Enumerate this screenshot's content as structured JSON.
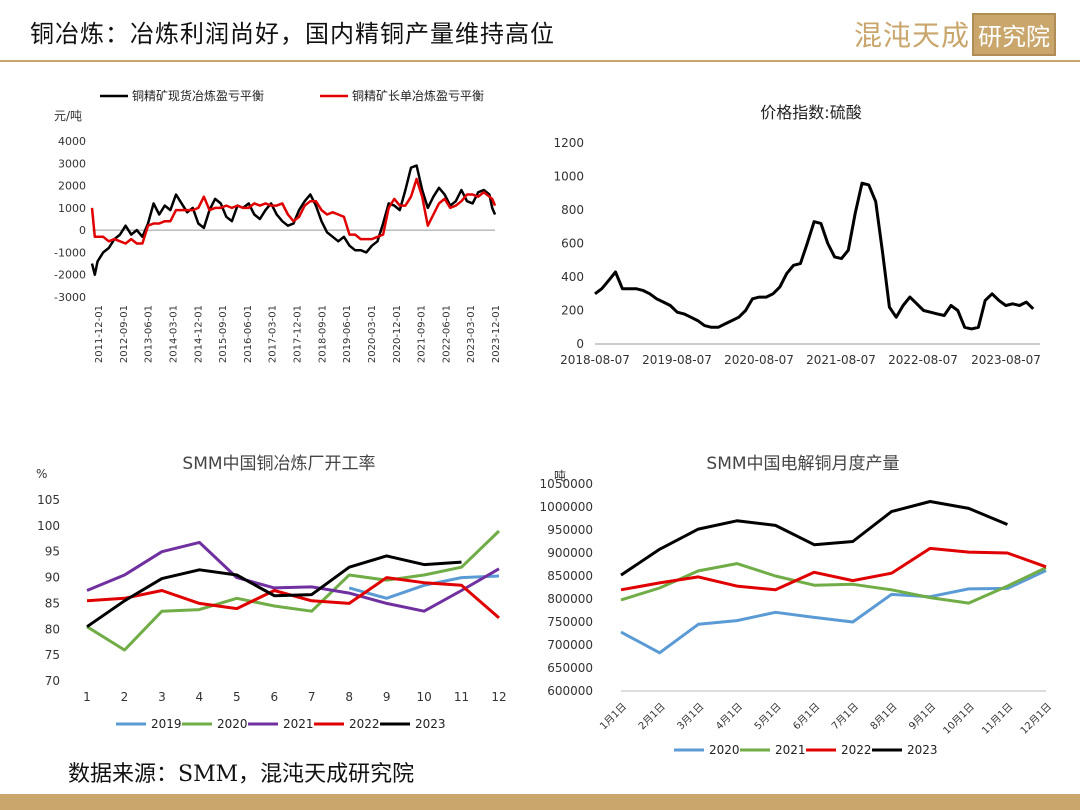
{
  "header": {
    "title": "铜冶炼：冶炼利润尚好，国内精铜产量维持高位",
    "brand_text": "混沌天成",
    "brand_box_text": "研究院",
    "accent_color": "#c9a66b"
  },
  "footer": {
    "source": "数据来源：SMM，混沌天成研究院"
  },
  "chart_data": [
    {
      "type": "line",
      "title": "",
      "ylabel": "元/吨",
      "ylim": [
        -3000,
        4000
      ],
      "yticks": [
        -3000,
        -2000,
        -1000,
        0,
        1000,
        2000,
        3000,
        4000
      ],
      "x_ticks": [
        "2011-12-01",
        "2012-09-01",
        "2013-06-01",
        "2014-03-01",
        "2014-12-01",
        "2015-09-01",
        "2016-06-01",
        "2017-03-01",
        "2017-12-01",
        "2018-09-01",
        "2019-06-01",
        "2020-03-01",
        "2020-12-01",
        "2021-09-01",
        "2022-06-01",
        "2023-03-01",
        "2023-12-01"
      ],
      "x_range": [
        0,
        144
      ],
      "legend_position": "top",
      "series": [
        {
          "name": "铜精矿现货冶炼盈亏平衡",
          "color": "#000000",
          "x": [
            0,
            1,
            2,
            4,
            6,
            8,
            10,
            12,
            14,
            16,
            18,
            20,
            22,
            24,
            26,
            28,
            30,
            32,
            34,
            36,
            38,
            40,
            42,
            44,
            46,
            48,
            50,
            52,
            54,
            56,
            58,
            60,
            62,
            64,
            66,
            68,
            70,
            72,
            74,
            76,
            78,
            80,
            82,
            84,
            86,
            88,
            90,
            92,
            94,
            96,
            98,
            100,
            102,
            104,
            106,
            108,
            110,
            112,
            114,
            116,
            118,
            120,
            122,
            124,
            126,
            128,
            130,
            132,
            134,
            136,
            138,
            140,
            142,
            143,
            144
          ],
          "values": [
            -1500,
            -2000,
            -1400,
            -1000,
            -800,
            -400,
            -200,
            200,
            -200,
            0,
            -300,
            300,
            1200,
            700,
            1100,
            900,
            1600,
            1200,
            800,
            1000,
            300,
            100,
            900,
            1400,
            1200,
            600,
            400,
            1100,
            1000,
            1200,
            700,
            500,
            900,
            1200,
            700,
            400,
            200,
            300,
            900,
            1300,
            1600,
            1100,
            400,
            -100,
            -300,
            -500,
            -300,
            -700,
            -900,
            -900,
            -1000,
            -700,
            -500,
            300,
            1200,
            1100,
            900,
            1800,
            2800,
            2900,
            1800,
            1000,
            1500,
            1900,
            1600,
            1100,
            1300,
            1800,
            1300,
            1200,
            1700,
            1800,
            1600,
            1000,
            700
          ]
        },
        {
          "name": "铜精矿长单冶炼盈亏平衡",
          "color": "#e00000",
          "x": [
            0,
            1,
            2,
            4,
            6,
            8,
            10,
            12,
            14,
            16,
            18,
            20,
            22,
            24,
            26,
            28,
            30,
            32,
            34,
            36,
            38,
            40,
            42,
            44,
            46,
            48,
            50,
            52,
            54,
            56,
            58,
            60,
            62,
            64,
            66,
            68,
            70,
            72,
            74,
            76,
            78,
            80,
            82,
            84,
            86,
            88,
            90,
            92,
            94,
            96,
            98,
            100,
            102,
            104,
            106,
            108,
            110,
            112,
            114,
            116,
            118,
            120,
            122,
            124,
            126,
            128,
            130,
            132,
            134,
            136,
            138,
            140,
            142,
            143,
            144
          ],
          "values": [
            1000,
            -300,
            -300,
            -300,
            -500,
            -400,
            -500,
            -600,
            -400,
            -600,
            -600,
            200,
            300,
            300,
            400,
            400,
            900,
            900,
            900,
            900,
            1000,
            1500,
            900,
            1000,
            1000,
            1100,
            1000,
            1100,
            1000,
            1000,
            1200,
            1100,
            1200,
            1100,
            1100,
            1200,
            700,
            400,
            600,
            1100,
            1300,
            1300,
            900,
            700,
            800,
            700,
            600,
            -200,
            -200,
            -400,
            -400,
            -400,
            -300,
            -200,
            1000,
            1400,
            1100,
            1100,
            1500,
            2300,
            1500,
            200,
            700,
            1200,
            1400,
            1000,
            1100,
            1300,
            1600,
            1600,
            1500,
            1700,
            1500,
            1400,
            1100
          ]
        }
      ]
    },
    {
      "type": "line",
      "title": "价格指数:硫酸",
      "ylim": [
        0,
        1200
      ],
      "yticks": [
        0,
        200,
        400,
        600,
        800,
        1000,
        1200
      ],
      "x_ticks": [
        "2018-08-07",
        "2019-08-07",
        "2020-08-07",
        "2021-08-07",
        "2022-08-07",
        "2023-08-07"
      ],
      "x_range": [
        0,
        65
      ],
      "series": [
        {
          "name": "",
          "color": "#000000",
          "x": [
            0,
            1,
            2,
            3,
            4,
            5,
            6,
            7,
            8,
            9,
            10,
            11,
            12,
            13,
            14,
            15,
            16,
            17,
            18,
            19,
            20,
            21,
            22,
            23,
            24,
            25,
            26,
            27,
            28,
            29,
            30,
            31,
            32,
            33,
            34,
            35,
            36,
            37,
            38,
            39,
            40,
            41,
            42,
            43,
            44,
            45,
            46,
            47,
            48,
            49,
            50,
            51,
            52,
            53,
            54,
            55,
            56,
            57,
            58,
            59,
            60,
            61,
            62,
            63,
            64
          ],
          "values": [
            300,
            330,
            380,
            430,
            330,
            330,
            330,
            320,
            300,
            270,
            250,
            230,
            190,
            180,
            160,
            140,
            110,
            100,
            100,
            120,
            140,
            160,
            200,
            270,
            280,
            280,
            300,
            340,
            420,
            470,
            480,
            600,
            730,
            720,
            600,
            520,
            510,
            560,
            780,
            960,
            950,
            850,
            550,
            220,
            160,
            230,
            280,
            240,
            200,
            190,
            180,
            170,
            230,
            200,
            100,
            90,
            100,
            260,
            300,
            260,
            230,
            240,
            230,
            250,
            210
          ]
        }
      ]
    },
    {
      "type": "line",
      "title": "SMM中国铜冶炼厂开工率",
      "ylabel": "%",
      "ylim": [
        70,
        105
      ],
      "yticks": [
        70,
        75,
        80,
        85,
        90,
        95,
        100,
        105
      ],
      "categories": [
        "1",
        "2",
        "3",
        "4",
        "5",
        "6",
        "7",
        "8",
        "9",
        "10",
        "11",
        "12"
      ],
      "legend_position": "bottom",
      "series": [
        {
          "name": "2019",
          "color": "#5b9bd5",
          "values": [
            null,
            null,
            null,
            null,
            null,
            null,
            null,
            88,
            86,
            88.5,
            90,
            90.3
          ]
        },
        {
          "name": "2020",
          "color": "#70ad47",
          "values": [
            80.5,
            76,
            83.5,
            83.8,
            86,
            84.5,
            83.5,
            90.5,
            89.5,
            90.5,
            92,
            99
          ]
        },
        {
          "name": "2021",
          "color": "#7030a0",
          "values": [
            87.5,
            90.5,
            95,
            96.8,
            90,
            88,
            88.2,
            87,
            85,
            83.5,
            87.5,
            91.7
          ]
        },
        {
          "name": "2022",
          "color": "#e00000",
          "values": [
            85.5,
            86,
            87.5,
            85,
            84,
            87.5,
            85.5,
            85,
            90,
            89,
            88.5,
            82.2
          ]
        },
        {
          "name": "2023",
          "color": "#000000",
          "values": [
            80.5,
            85.5,
            89.8,
            91.5,
            90.5,
            86.5,
            86.7,
            92,
            94.2,
            92.5,
            93,
            null
          ]
        }
      ]
    },
    {
      "type": "line",
      "title": "SMM中国电解铜月度产量",
      "ylabel": "吨",
      "ylim": [
        600000,
        1050000
      ],
      "yticks": [
        600000,
        650000,
        700000,
        750000,
        800000,
        850000,
        900000,
        950000,
        1000000,
        1050000
      ],
      "categories": [
        "1月1日",
        "2月1日",
        "3月1日",
        "4月1日",
        "5月1日",
        "6月1日",
        "7月1日",
        "8月1日",
        "9月1日",
        "10月1日",
        "11月1日",
        "12月1日"
      ],
      "legend_position": "bottom",
      "series": [
        {
          "name": "2020",
          "color": "#5b9bd5",
          "values": [
            728000,
            683000,
            745000,
            753000,
            771000,
            760000,
            750000,
            810000,
            805000,
            822000,
            823000,
            862000
          ]
        },
        {
          "name": "2021",
          "color": "#70ad47",
          "values": [
            798000,
            824000,
            861000,
            877000,
            850000,
            830000,
            832000,
            820000,
            803000,
            791000,
            828000,
            868000
          ]
        },
        {
          "name": "2022",
          "color": "#e00000",
          "values": [
            820000,
            835000,
            848000,
            828000,
            820000,
            858000,
            840000,
            856000,
            910000,
            902000,
            900000,
            870000
          ]
        },
        {
          "name": "2023",
          "color": "#000000",
          "values": [
            852000,
            908000,
            952000,
            970000,
            960000,
            918000,
            925000,
            990000,
            1012000,
            997000,
            962000,
            null
          ]
        }
      ]
    }
  ]
}
